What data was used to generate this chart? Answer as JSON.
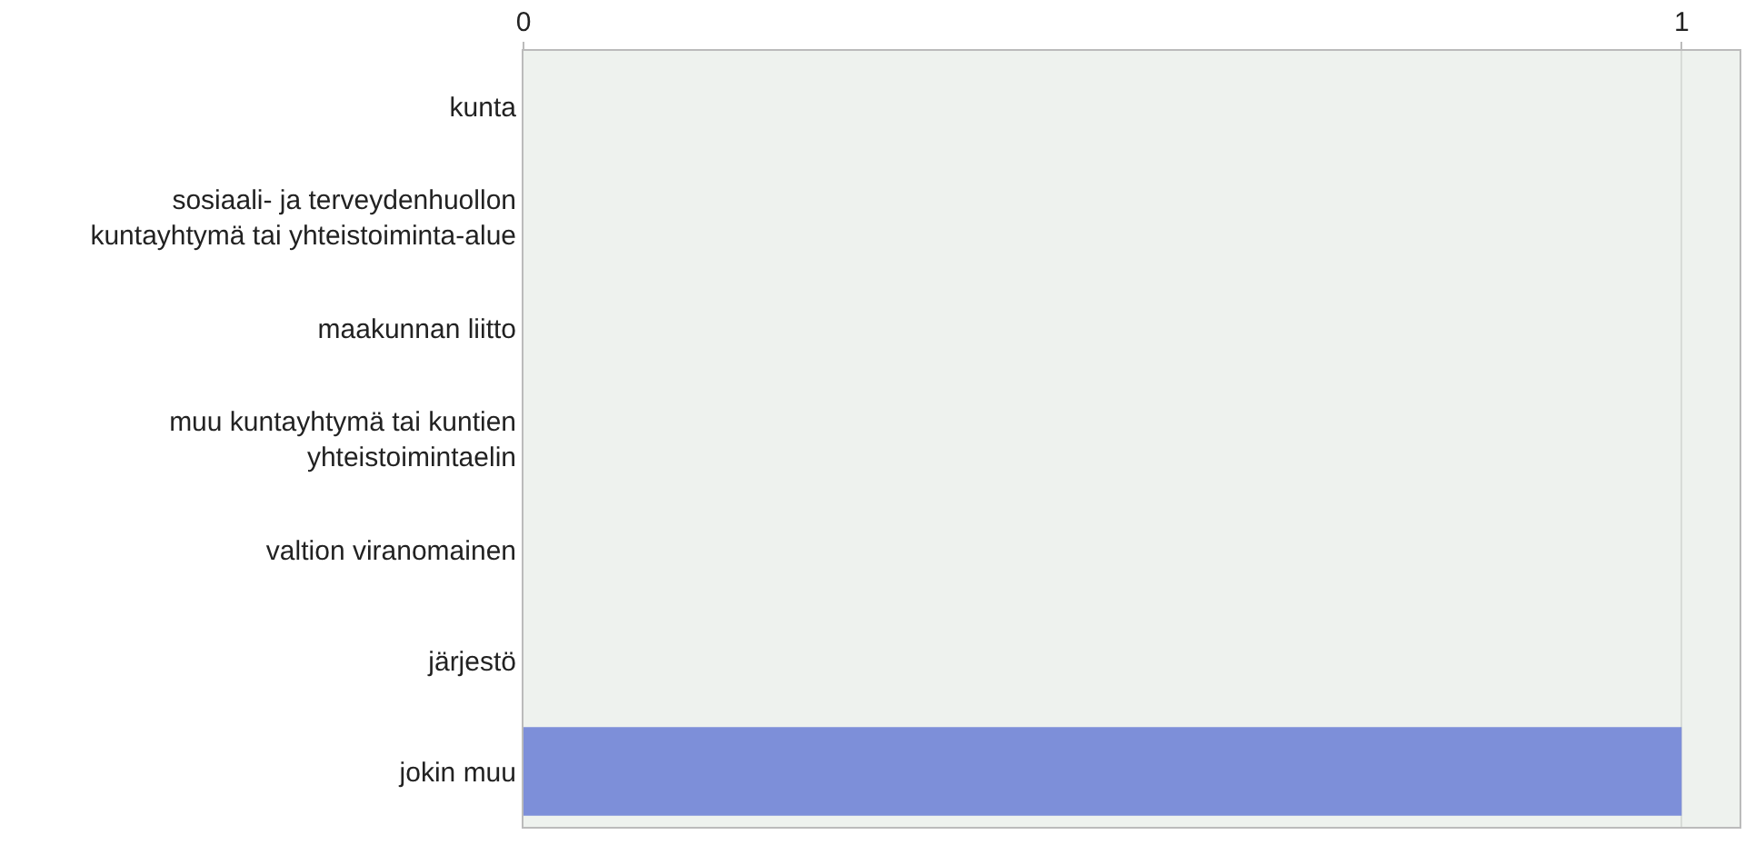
{
  "chart_data": {
    "type": "bar",
    "orientation": "horizontal",
    "categories": [
      "kunta",
      "sosiaali- ja terveydenhuollon kuntayhtymä tai yhteistoiminta-alue",
      "maakunnan liitto",
      "muu kuntayhtymä tai kuntien yhteistoimintaelin",
      "valtion viranomainen",
      "järjestö",
      "jokin muu"
    ],
    "values": [
      0,
      0,
      0,
      0,
      0,
      0,
      1
    ],
    "color": "#7d8fd9",
    "xlim": [
      0,
      1.05
    ],
    "xticks": [
      0,
      1
    ],
    "grid": "x"
  }
}
